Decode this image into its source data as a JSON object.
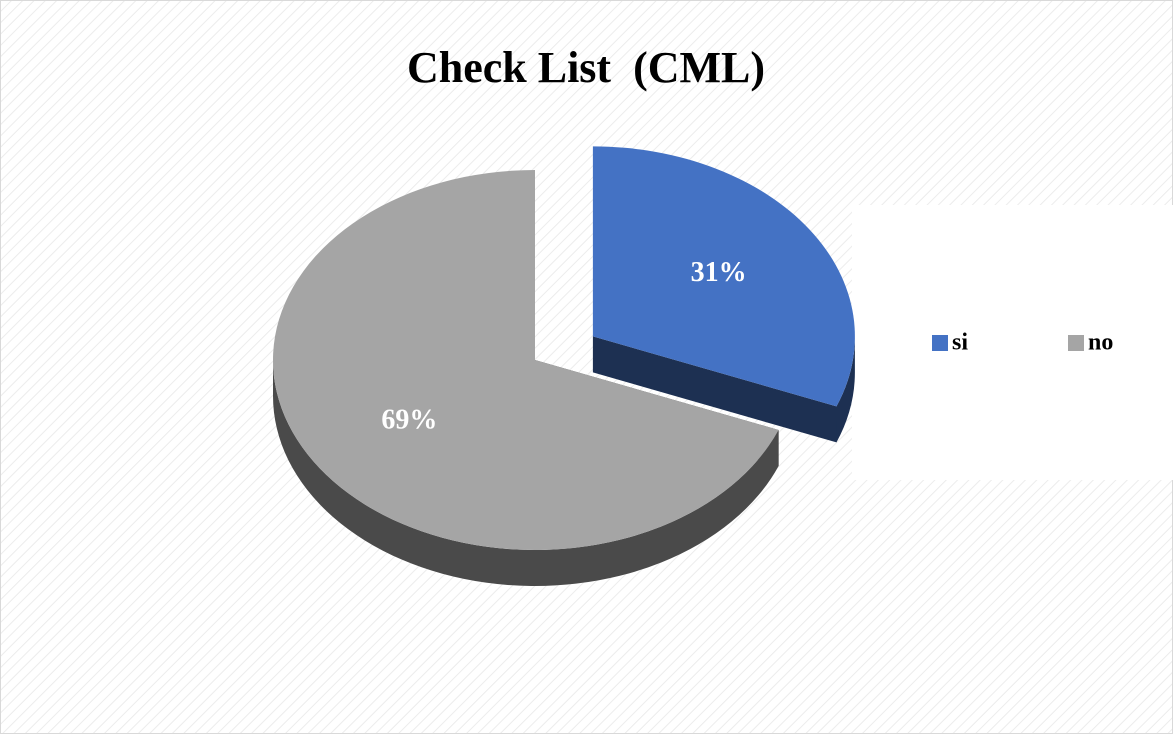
{
  "chart_data": {
    "type": "pie",
    "title": "Check List  (CML)",
    "categories": [
      "si",
      "no"
    ],
    "values": [
      31,
      69
    ],
    "value_labels": [
      "31%",
      "69%"
    ],
    "colors": [
      "#4472c4",
      "#a5a5a5"
    ],
    "legend": "right"
  }
}
